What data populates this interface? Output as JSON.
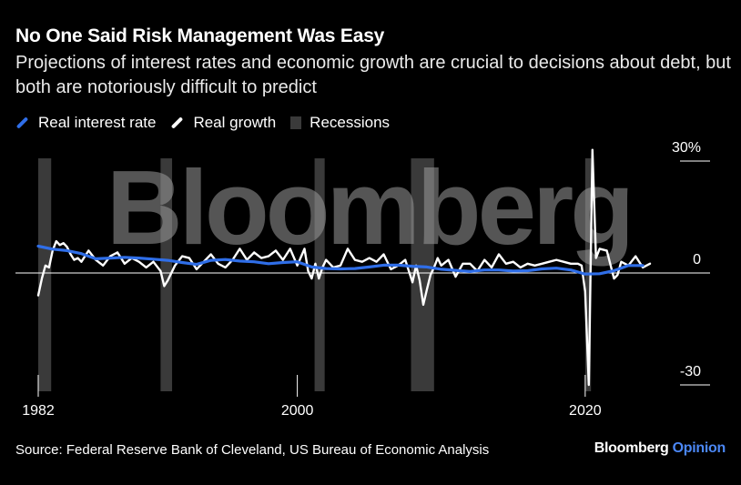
{
  "header": {
    "title": "No One Said Risk Management Was Easy",
    "subtitle": "Projections of interest rates and economic growth are crucial to decisions about debt, but both are notoriously difficult to predict"
  },
  "legend": {
    "items": [
      {
        "label": "Real interest rate",
        "color": "#2f6ee8",
        "kind": "line"
      },
      {
        "label": "Real growth",
        "color": "#ffffff",
        "kind": "line"
      },
      {
        "label": "Recessions",
        "color": "#3a3a3a",
        "kind": "box"
      }
    ]
  },
  "watermark": "Bloomberg",
  "footer": {
    "source": "Source: Federal Reserve Bank of Cleveland, US Bureau of Economic Analysis",
    "brand": "Bloomberg",
    "brand_suffix": "Opinion"
  },
  "chart_data": {
    "type": "line",
    "x_ticks": [
      "1982",
      "2000",
      "2020"
    ],
    "y_ticks": [
      "30%",
      "0",
      "-30"
    ],
    "ylim": [
      -30,
      30
    ],
    "xlim": [
      1982,
      2024.5
    ],
    "recessions": [
      [
        1982.0,
        1982.9
      ],
      [
        1990.5,
        1991.3
      ],
      [
        2001.2,
        2001.9
      ],
      [
        2007.9,
        2009.5
      ],
      [
        2020.0,
        2020.4
      ]
    ],
    "series": [
      {
        "name": "Real interest rate",
        "color": "#2f6ee8",
        "x": [
          1982,
          1983,
          1984,
          1985,
          1986,
          1987,
          1988,
          1989,
          1990,
          1991,
          1992,
          1993,
          1994,
          1995,
          1996,
          1997,
          1998,
          1999,
          2000,
          2001,
          2002,
          2003,
          2004,
          2005,
          2006,
          2007,
          2008,
          2009,
          2010,
          2011,
          2012,
          2013,
          2014,
          2015,
          2016,
          2017,
          2018,
          2019,
          2020,
          2021,
          2022,
          2023,
          2024
        ],
        "y": [
          7.2,
          6.4,
          6.0,
          5.2,
          3.8,
          4.0,
          4.2,
          4.0,
          3.7,
          3.4,
          2.8,
          2.3,
          3.4,
          3.6,
          3.2,
          3.0,
          2.5,
          2.8,
          3.0,
          1.6,
          1.2,
          1.1,
          1.2,
          1.6,
          2.1,
          2.1,
          1.8,
          1.6,
          1.0,
          0.7,
          0.4,
          0.8,
          0.8,
          0.5,
          0.6,
          1.1,
          1.3,
          0.8,
          -0.3,
          -0.2,
          0.6,
          2.0,
          2.0
        ]
      },
      {
        "name": "Real growth",
        "color": "#ffffff",
        "x": [
          1982.0,
          1982.25,
          1982.5,
          1982.75,
          1983.0,
          1983.25,
          1983.5,
          1983.75,
          1984.0,
          1984.25,
          1984.5,
          1984.75,
          1985.0,
          1985.5,
          1986.0,
          1986.5,
          1987.0,
          1987.5,
          1988.0,
          1988.5,
          1989.0,
          1989.5,
          1990.0,
          1990.5,
          1990.75,
          1991.0,
          1991.5,
          1992.0,
          1992.5,
          1993.0,
          1993.5,
          1994.0,
          1994.5,
          1995.0,
          1995.5,
          1996.0,
          1996.5,
          1997.0,
          1997.5,
          1998.0,
          1998.5,
          1999.0,
          1999.5,
          2000.0,
          2000.5,
          2000.75,
          2001.0,
          2001.25,
          2001.5,
          2001.75,
          2002.0,
          2002.5,
          2003.0,
          2003.5,
          2004.0,
          2004.5,
          2005.0,
          2005.5,
          2006.0,
          2006.5,
          2007.0,
          2007.5,
          2008.0,
          2008.25,
          2008.5,
          2008.75,
          2009.0,
          2009.25,
          2009.5,
          2009.75,
          2010.0,
          2010.5,
          2011.0,
          2011.5,
          2012.0,
          2012.5,
          2013.0,
          2013.5,
          2014.0,
          2014.5,
          2015.0,
          2015.5,
          2016.0,
          2016.5,
          2017.0,
          2017.5,
          2018.0,
          2018.5,
          2019.0,
          2019.5,
          2019.75,
          2020.0,
          2020.25,
          2020.5,
          2020.75,
          2021.0,
          2021.5,
          2022.0,
          2022.25,
          2022.5,
          2023.0,
          2023.5,
          2024.0,
          2024.5
        ],
        "y": [
          -6.0,
          -1.5,
          2.0,
          1.5,
          6.0,
          8.5,
          7.5,
          8.0,
          7.0,
          5.0,
          3.5,
          4.0,
          3.0,
          6.0,
          3.5,
          2.0,
          4.5,
          5.5,
          2.5,
          4.0,
          3.0,
          1.5,
          3.0,
          0.5,
          -3.5,
          -2.0,
          2.0,
          4.5,
          4.0,
          1.0,
          3.0,
          5.0,
          2.5,
          1.5,
          3.5,
          6.5,
          3.5,
          5.5,
          4.0,
          4.5,
          6.0,
          3.5,
          6.5,
          2.0,
          6.5,
          0.5,
          -1.5,
          2.5,
          -1.5,
          1.5,
          3.5,
          1.5,
          2.0,
          6.5,
          3.5,
          3.0,
          4.0,
          3.0,
          5.0,
          1.0,
          2.0,
          3.5,
          -2.5,
          2.0,
          -2.0,
          -8.5,
          -4.5,
          -0.5,
          1.5,
          4.0,
          2.0,
          3.5,
          -1.0,
          2.5,
          2.5,
          0.5,
          3.5,
          1.5,
          5.0,
          2.5,
          3.0,
          1.5,
          2.5,
          2.0,
          2.5,
          3.0,
          3.5,
          3.0,
          2.5,
          2.5,
          2.0,
          -5.0,
          -30.0,
          33.0,
          4.0,
          6.5,
          6.0,
          -1.5,
          -0.5,
          3.0,
          2.0,
          4.5,
          1.5,
          2.5
        ]
      }
    ]
  }
}
